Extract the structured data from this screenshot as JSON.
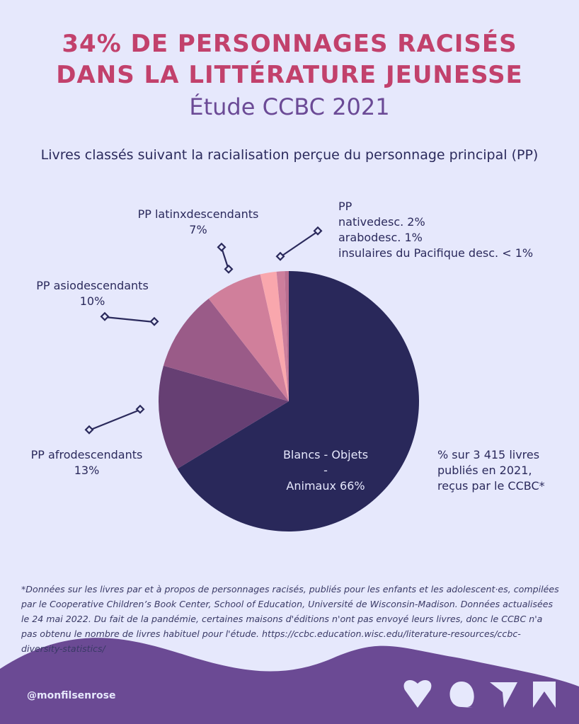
{
  "title_line1": "34% DE PERSONNAGES RACISÉS",
  "title_line2": "DANS LA LITTÉRATURE JEUNESSE",
  "subtitle": "Étude CCBC 2021",
  "lead": "Livres classés suivant la racialisation perçue du personnage principal (PP)",
  "chart_data": {
    "type": "pie",
    "title": "Livres classés suivant la racialisation perçue du personnage principal (PP)",
    "slices": [
      {
        "name": "Blancs - Objets - Animaux",
        "value": 66,
        "color": "#29285a"
      },
      {
        "name": "PP afrodescendants",
        "value": 13,
        "color": "#663f73"
      },
      {
        "name": "PP asiodescendants",
        "value": 10,
        "color": "#9a5b88"
      },
      {
        "name": "PP latinxdescendants",
        "value": 7,
        "color": "#d07f9b"
      },
      {
        "name": "PP nativedesc.",
        "value": 2,
        "color": "#f9a7ad"
      },
      {
        "name": "PP arabodesc.",
        "value": 1,
        "color": "#cc7e9c"
      },
      {
        "name": "PP insulaires du Pacifique desc.",
        "value": 0.5,
        "color": "#b96e90"
      }
    ],
    "labels": {
      "blancs": [
        "Blancs - Objets -",
        "Animaux 66%"
      ],
      "afro": [
        "PP afrodescendants",
        "13%"
      ],
      "asio": [
        "PP asiodescendants",
        "10%"
      ],
      "latinx": [
        "PP latinxdescendants",
        "7%"
      ],
      "small": [
        "PP",
        "nativedesc. 2%",
        "arabodesc. 1%",
        "insulaires du Pacifique desc. < 1%"
      ]
    },
    "note": [
      "% sur 3 415 livres",
      "publiés en 2021,",
      "reçus par le CCBC*"
    ]
  },
  "footnote": "*Données sur les livres par et à propos de personnages racisés, publiés pour les enfants et les adolescent·es, compilées par le Cooperative Children’s Book Center, School of Education, Université de Wisconsin-Madison. Données actualisées le 24 mai 2022. Du fait de la pandémie, certaines maisons d'éditions n'ont pas envoyé leurs livres, donc le CCBC n'a pas obtenu le nombre de livres habituel pour l'étude. https://ccbc.education.wisc.edu/literature-resources/ccbc-diversity-statistics/",
  "footer": {
    "handle": "@monfilsenrose",
    "icons": [
      "heart-icon",
      "comment-icon",
      "send-icon",
      "bookmark-icon"
    ]
  }
}
